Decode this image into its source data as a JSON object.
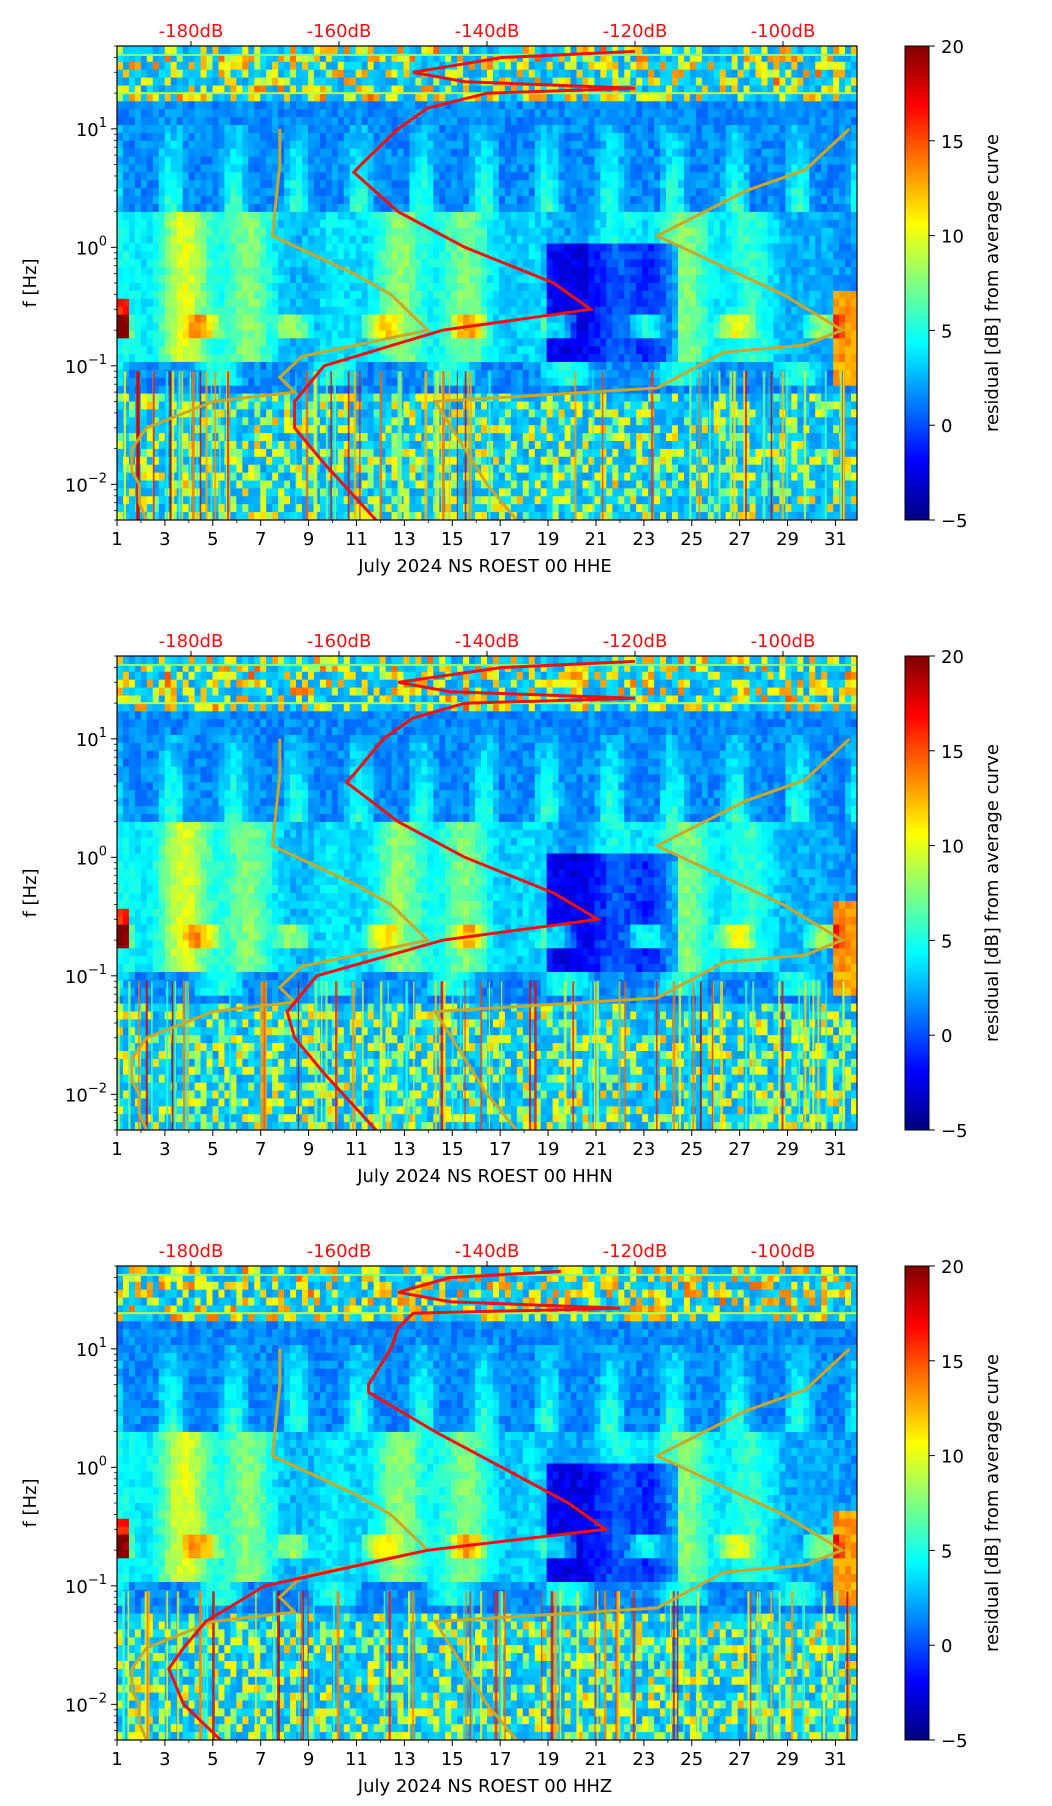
{
  "colormap": {
    "name": "jet",
    "stops": [
      "#00007f",
      "#0000ff",
      "#0080ff",
      "#00ffff",
      "#80ff80",
      "#ffff00",
      "#ff8000",
      "#ff0000",
      "#7f0000"
    ]
  },
  "colors": {
    "psd_curve": "#ee1111",
    "noise_model": "#c8a82a",
    "top_axis_text": "#ee1111"
  },
  "chart_data": [
    {
      "type": "heatmap",
      "title": "",
      "xlabel": "July 2024 NS ROEST 00 HHE",
      "ylabel": "f [Hz]",
      "xlim": [
        1,
        31.9
      ],
      "ylim": [
        0.005,
        50
      ],
      "yscale": "log",
      "xticks": [
        1,
        3,
        5,
        7,
        9,
        11,
        13,
        15,
        17,
        19,
        21,
        23,
        25,
        27,
        29,
        31
      ],
      "yticks": [
        {
          "value": 10,
          "base": "10",
          "exp": "1"
        },
        {
          "value": 1,
          "base": "10",
          "exp": "0"
        },
        {
          "value": 0.1,
          "base": "10",
          "exp": "−1"
        },
        {
          "value": 0.01,
          "base": "10",
          "exp": "−2"
        }
      ],
      "top_axis": {
        "ticks": [
          "-180dB",
          "-160dB",
          "-140dB",
          "-120dB",
          "-100dB"
        ],
        "positions_db": [
          -180,
          -160,
          -140,
          -120,
          -100
        ],
        "db_range": [
          -190,
          -90
        ]
      },
      "colorbar": {
        "label": "residual [dB] from average curve",
        "min": -5,
        "max": 20,
        "ticks": [
          -5,
          0,
          5,
          10,
          15,
          20
        ]
      },
      "psd_curve_db": [
        {
          "f": 45,
          "db": -120
        },
        {
          "f": 40,
          "db": -138
        },
        {
          "f": 30,
          "db": -150
        },
        {
          "f": 25,
          "db": -143
        },
        {
          "f": 22,
          "db": -120
        },
        {
          "f": 20,
          "db": -140
        },
        {
          "f": 15,
          "db": -148
        },
        {
          "f": 10,
          "db": -152
        },
        {
          "f": 5,
          "db": -157
        },
        {
          "f": 4.3,
          "db": -158
        },
        {
          "f": 2,
          "db": -152
        },
        {
          "f": 1,
          "db": -143
        },
        {
          "f": 0.5,
          "db": -131
        },
        {
          "f": 0.3,
          "db": -126
        },
        {
          "f": 0.2,
          "db": -146
        },
        {
          "f": 0.1,
          "db": -162
        },
        {
          "f": 0.05,
          "db": -166
        },
        {
          "f": 0.03,
          "db": -166
        },
        {
          "f": 0.015,
          "db": -162
        },
        {
          "f": 0.008,
          "db": -158
        },
        {
          "f": 0.005,
          "db": -155
        }
      ]
    },
    {
      "type": "heatmap",
      "title": "",
      "xlabel": "July 2024 NS ROEST 00 HHN",
      "ylabel": "f [Hz]",
      "xlim": [
        1,
        31.9
      ],
      "ylim": [
        0.005,
        50
      ],
      "yscale": "log",
      "xticks": [
        1,
        3,
        5,
        7,
        9,
        11,
        13,
        15,
        17,
        19,
        21,
        23,
        25,
        27,
        29,
        31
      ],
      "yticks": [
        {
          "value": 10,
          "base": "10",
          "exp": "1"
        },
        {
          "value": 1,
          "base": "10",
          "exp": "0"
        },
        {
          "value": 0.1,
          "base": "10",
          "exp": "−1"
        },
        {
          "value": 0.01,
          "base": "10",
          "exp": "−2"
        }
      ],
      "top_axis": {
        "ticks": [
          "-180dB",
          "-160dB",
          "-140dB",
          "-120dB",
          "-100dB"
        ],
        "positions_db": [
          -180,
          -160,
          -140,
          -120,
          -100
        ],
        "db_range": [
          -190,
          -90
        ]
      },
      "colorbar": {
        "label": "residual [dB] from average curve",
        "min": -5,
        "max": 20,
        "ticks": [
          -5,
          0,
          5,
          10,
          15,
          20
        ]
      },
      "psd_curve_db": [
        {
          "f": 45,
          "db": -120
        },
        {
          "f": 40,
          "db": -138
        },
        {
          "f": 30,
          "db": -152
        },
        {
          "f": 25,
          "db": -145
        },
        {
          "f": 22,
          "db": -120
        },
        {
          "f": 20,
          "db": -143
        },
        {
          "f": 15,
          "db": -150
        },
        {
          "f": 10,
          "db": -154
        },
        {
          "f": 5,
          "db": -158
        },
        {
          "f": 4.3,
          "db": -159
        },
        {
          "f": 2,
          "db": -152
        },
        {
          "f": 1,
          "db": -143
        },
        {
          "f": 0.5,
          "db": -131
        },
        {
          "f": 0.3,
          "db": -125
        },
        {
          "f": 0.2,
          "db": -146
        },
        {
          "f": 0.1,
          "db": -163
        },
        {
          "f": 0.05,
          "db": -167
        },
        {
          "f": 0.03,
          "db": -166
        },
        {
          "f": 0.015,
          "db": -162
        },
        {
          "f": 0.008,
          "db": -158
        },
        {
          "f": 0.005,
          "db": -155
        }
      ]
    },
    {
      "type": "heatmap",
      "title": "",
      "xlabel": "July 2024 NS ROEST 00 HHZ",
      "ylabel": "f [Hz]",
      "xlim": [
        1,
        31.9
      ],
      "ylim": [
        0.005,
        50
      ],
      "yscale": "log",
      "xticks": [
        1,
        3,
        5,
        7,
        9,
        11,
        13,
        15,
        17,
        19,
        21,
        23,
        25,
        27,
        29,
        31
      ],
      "yticks": [
        {
          "value": 10,
          "base": "10",
          "exp": "1"
        },
        {
          "value": 1,
          "base": "10",
          "exp": "0"
        },
        {
          "value": 0.1,
          "base": "10",
          "exp": "−1"
        },
        {
          "value": 0.01,
          "base": "10",
          "exp": "−2"
        }
      ],
      "top_axis": {
        "ticks": [
          "-180dB",
          "-160dB",
          "-140dB",
          "-120dB",
          "-100dB"
        ],
        "positions_db": [
          -180,
          -160,
          -140,
          -120,
          -100
        ],
        "db_range": [
          -190,
          -90
        ]
      },
      "colorbar": {
        "label": "residual [dB] from average curve",
        "min": -5,
        "max": 20,
        "ticks": [
          -5,
          0,
          5,
          10,
          15,
          20
        ]
      },
      "psd_curve_db": [
        {
          "f": 45,
          "db": -130
        },
        {
          "f": 40,
          "db": -145
        },
        {
          "f": 30,
          "db": -152
        },
        {
          "f": 25,
          "db": -145
        },
        {
          "f": 22,
          "db": -122
        },
        {
          "f": 20,
          "db": -150
        },
        {
          "f": 15,
          "db": -152
        },
        {
          "f": 10,
          "db": -153
        },
        {
          "f": 5,
          "db": -156
        },
        {
          "f": 4.3,
          "db": -156
        },
        {
          "f": 2,
          "db": -147
        },
        {
          "f": 1,
          "db": -138
        },
        {
          "f": 0.5,
          "db": -129
        },
        {
          "f": 0.3,
          "db": -124
        },
        {
          "f": 0.2,
          "db": -148
        },
        {
          "f": 0.1,
          "db": -170
        },
        {
          "f": 0.05,
          "db": -178
        },
        {
          "f": 0.03,
          "db": -181
        },
        {
          "f": 0.02,
          "db": -183
        },
        {
          "f": 0.01,
          "db": -181
        },
        {
          "f": 0.005,
          "db": -176
        }
      ]
    }
  ],
  "noise_models_db": {
    "low": [
      {
        "f": 10,
        "db": -168
      },
      {
        "f": 5,
        "db": -168
      },
      {
        "f": 1.25,
        "db": -169
      },
      {
        "f": 0.6,
        "db": -158
      },
      {
        "f": 0.4,
        "db": -153
      },
      {
        "f": 0.2,
        "db": -148
      },
      {
        "f": 0.12,
        "db": -165
      },
      {
        "f": 0.08,
        "db": -168
      },
      {
        "f": 0.06,
        "db": -166
      },
      {
        "f": 0.05,
        "db": -177
      },
      {
        "f": 0.03,
        "db": -186
      },
      {
        "f": 0.02,
        "db": -188
      },
      {
        "f": 0.013,
        "db": -188
      },
      {
        "f": 0.01,
        "db": -187
      },
      {
        "f": 0.007,
        "db": -187
      },
      {
        "f": 0.005,
        "db": -186
      }
    ],
    "high": [
      {
        "f": 10,
        "db": -91
      },
      {
        "f": 4.5,
        "db": -97
      },
      {
        "f": 3,
        "db": -105
      },
      {
        "f": 1.25,
        "db": -117
      },
      {
        "f": 0.4,
        "db": -100
      },
      {
        "f": 0.2,
        "db": -92
      },
      {
        "f": 0.15,
        "db": -97
      },
      {
        "f": 0.13,
        "db": -108
      },
      {
        "f": 0.065,
        "db": -117
      },
      {
        "f": 0.05,
        "db": -147
      },
      {
        "f": 0.01,
        "db": -140
      },
      {
        "f": 0.005,
        "db": -136
      }
    ]
  }
}
